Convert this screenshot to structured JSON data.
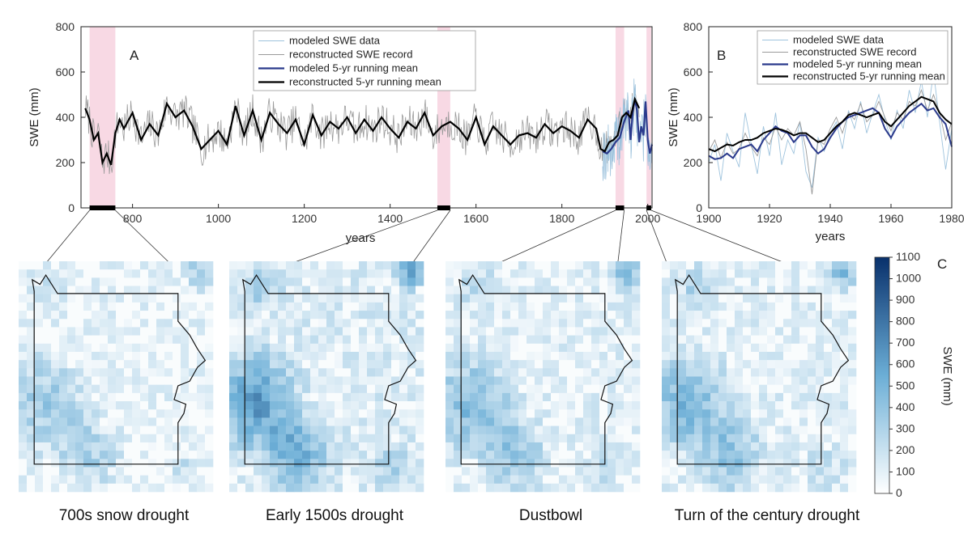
{
  "colors": {
    "modeled_data": "#9ec3dd",
    "reconstructed_record": "#9a9a9a",
    "modeled_mean": "#2b3a8c",
    "reconstructed_mean": "#000000",
    "drought_band": "#f8d9e4",
    "map_low": "#ffffff",
    "map_high": "#08306b"
  },
  "chart_data": [
    {
      "id": "A",
      "type": "line",
      "panel_letter": "A",
      "xlabel": "years",
      "ylabel": "SWE (mm)",
      "xlim": [
        680,
        2010
      ],
      "ylim": [
        0,
        800
      ],
      "xticks": [
        800,
        1000,
        1200,
        1400,
        1600,
        1800,
        2000
      ],
      "yticks": [
        0,
        200,
        400,
        600,
        800
      ],
      "legend_position": "top-center",
      "legend": [
        {
          "key": "modeled_data",
          "label": "modeled SWE data"
        },
        {
          "key": "reconstructed_record",
          "label": "reconstructed SWE record"
        },
        {
          "key": "modeled_mean",
          "label": "modeled 5-yr running mean"
        },
        {
          "key": "reconstructed_mean",
          "label": "reconstructed 5-yr running mean"
        }
      ],
      "drought_periods": [
        [
          700,
          760
        ],
        [
          1510,
          1540
        ],
        [
          1925,
          1945
        ],
        [
          1997,
          2008
        ]
      ],
      "series": [
        {
          "key": "reconstructed_mean",
          "x": [
            690,
            700,
            710,
            720,
            730,
            740,
            750,
            760,
            770,
            780,
            800,
            820,
            840,
            860,
            880,
            900,
            920,
            940,
            960,
            980,
            1000,
            1020,
            1040,
            1060,
            1080,
            1100,
            1120,
            1140,
            1160,
            1180,
            1200,
            1220,
            1240,
            1260,
            1280,
            1300,
            1320,
            1340,
            1360,
            1380,
            1400,
            1420,
            1440,
            1460,
            1480,
            1500,
            1520,
            1540,
            1560,
            1580,
            1600,
            1620,
            1640,
            1660,
            1680,
            1700,
            1720,
            1740,
            1760,
            1780,
            1800,
            1820,
            1840,
            1860,
            1880,
            1890,
            1900,
            1910,
            1920,
            1930,
            1940,
            1950,
            1960,
            1970,
            1980
          ],
          "y": [
            440,
            390,
            300,
            330,
            200,
            240,
            190,
            330,
            390,
            350,
            420,
            300,
            370,
            320,
            460,
            400,
            430,
            360,
            260,
            300,
            340,
            280,
            450,
            320,
            430,
            300,
            420,
            370,
            330,
            390,
            280,
            410,
            320,
            380,
            350,
            400,
            330,
            390,
            340,
            400,
            350,
            310,
            380,
            350,
            420,
            320,
            360,
            380,
            350,
            300,
            400,
            280,
            360,
            320,
            280,
            320,
            330,
            310,
            370,
            330,
            360,
            340,
            310,
            390,
            350,
            260,
            250,
            290,
            300,
            320,
            400,
            420,
            400,
            480,
            440
          ]
        },
        {
          "key": "modeled_mean",
          "x": [
            1895,
            1905,
            1915,
            1925,
            1935,
            1945,
            1955,
            1960,
            1965,
            1970,
            1975,
            1980,
            1985,
            1990,
            1995,
            2000,
            2005,
            2010
          ],
          "y": [
            250,
            240,
            260,
            290,
            310,
            380,
            430,
            300,
            420,
            480,
            430,
            290,
            360,
            320,
            470,
            300,
            240,
            280
          ]
        }
      ]
    },
    {
      "id": "B",
      "type": "line",
      "panel_letter": "B",
      "xlabel": "years",
      "ylabel": "SWE (mm)",
      "xlim": [
        1900,
        1980
      ],
      "ylim": [
        0,
        800
      ],
      "xticks": [
        1900,
        1920,
        1940,
        1960,
        1980
      ],
      "yticks": [
        0,
        200,
        400,
        600,
        800
      ],
      "legend_position": "top-center",
      "legend": [
        {
          "key": "modeled_data",
          "label": "modeled SWE data"
        },
        {
          "key": "reconstructed_record",
          "label": "reconstructed SWE record"
        },
        {
          "key": "modeled_mean",
          "label": "modeled 5-yr running mean"
        },
        {
          "key": "reconstructed_mean",
          "label": "reconstructed 5-yr running mean"
        }
      ],
      "series": [
        {
          "key": "modeled_data",
          "x": [
            1900,
            1902,
            1904,
            1906,
            1908,
            1910,
            1912,
            1914,
            1916,
            1918,
            1920,
            1922,
            1924,
            1926,
            1928,
            1930,
            1932,
            1934,
            1936,
            1938,
            1940,
            1942,
            1944,
            1946,
            1948,
            1950,
            1952,
            1954,
            1956,
            1958,
            1960,
            1962,
            1964,
            1966,
            1968,
            1970,
            1972,
            1974,
            1976,
            1978,
            1980
          ],
          "y": [
            200,
            280,
            120,
            330,
            250,
            180,
            420,
            280,
            150,
            360,
            230,
            420,
            190,
            300,
            240,
            380,
            160,
            90,
            310,
            250,
            330,
            380,
            260,
            430,
            350,
            470,
            330,
            420,
            500,
            390,
            300,
            430,
            350,
            520,
            420,
            560,
            400,
            600,
            380,
            170,
            350
          ]
        },
        {
          "key": "reconstructed_record",
          "x": [
            1900,
            1902,
            1904,
            1906,
            1908,
            1910,
            1912,
            1914,
            1916,
            1918,
            1920,
            1922,
            1924,
            1926,
            1928,
            1930,
            1932,
            1934,
            1936,
            1938,
            1940,
            1942,
            1944,
            1946,
            1948,
            1950,
            1952,
            1954,
            1956,
            1958,
            1960,
            1962,
            1964,
            1966,
            1968,
            1970,
            1972,
            1974,
            1976,
            1978,
            1980
          ],
          "y": [
            250,
            300,
            220,
            290,
            240,
            260,
            330,
            270,
            230,
            310,
            280,
            360,
            300,
            350,
            320,
            380,
            260,
            60,
            300,
            280,
            350,
            400,
            330,
            420,
            390,
            460,
            380,
            410,
            470,
            400,
            340,
            420,
            390,
            470,
            450,
            520,
            430,
            500,
            420,
            300,
            380
          ]
        },
        {
          "key": "modeled_mean",
          "x": [
            1900,
            1902,
            1904,
            1906,
            1908,
            1910,
            1912,
            1914,
            1916,
            1918,
            1920,
            1922,
            1924,
            1926,
            1928,
            1930,
            1932,
            1934,
            1936,
            1938,
            1940,
            1942,
            1944,
            1946,
            1948,
            1950,
            1952,
            1954,
            1956,
            1958,
            1960,
            1962,
            1964,
            1966,
            1968,
            1970,
            1972,
            1974,
            1976,
            1978,
            1980
          ],
          "y": [
            230,
            215,
            220,
            240,
            220,
            260,
            270,
            280,
            250,
            300,
            330,
            360,
            340,
            330,
            290,
            320,
            320,
            270,
            240,
            260,
            310,
            350,
            380,
            400,
            410,
            420,
            430,
            440,
            420,
            350,
            310,
            360,
            390,
            420,
            440,
            460,
            430,
            440,
            400,
            370,
            270
          ]
        },
        {
          "key": "reconstructed_mean",
          "x": [
            1900,
            1902,
            1904,
            1906,
            1908,
            1910,
            1912,
            1914,
            1916,
            1918,
            1920,
            1922,
            1924,
            1926,
            1928,
            1930,
            1932,
            1934,
            1936,
            1938,
            1940,
            1942,
            1944,
            1946,
            1948,
            1950,
            1952,
            1954,
            1956,
            1958,
            1960,
            1962,
            1964,
            1966,
            1968,
            1970,
            1972,
            1974,
            1976,
            1978,
            1980
          ],
          "y": [
            260,
            250,
            265,
            280,
            275,
            290,
            300,
            300,
            310,
            330,
            340,
            350,
            345,
            335,
            320,
            330,
            330,
            310,
            290,
            300,
            330,
            360,
            380,
            410,
            420,
            410,
            400,
            410,
            420,
            380,
            360,
            390,
            420,
            450,
            470,
            490,
            480,
            470,
            420,
            390,
            370
          ]
        }
      ]
    },
    {
      "id": "C",
      "type": "heatmap",
      "panel_letter": "C",
      "colorbar_label": "SWE (mm)",
      "colorbar_ticks": [
        0,
        100,
        200,
        300,
        400,
        500,
        600,
        700,
        800,
        900,
        1000,
        1100
      ],
      "crange": [
        0,
        1100
      ],
      "maps": [
        {
          "name": "700s snow drought",
          "intensity": 0.55
        },
        {
          "name": "Early 1500s drought",
          "intensity": 0.95
        },
        {
          "name": "Dustbowl",
          "intensity": 0.7
        },
        {
          "name": "Turn of the century drought",
          "intensity": 0.75
        }
      ]
    }
  ]
}
